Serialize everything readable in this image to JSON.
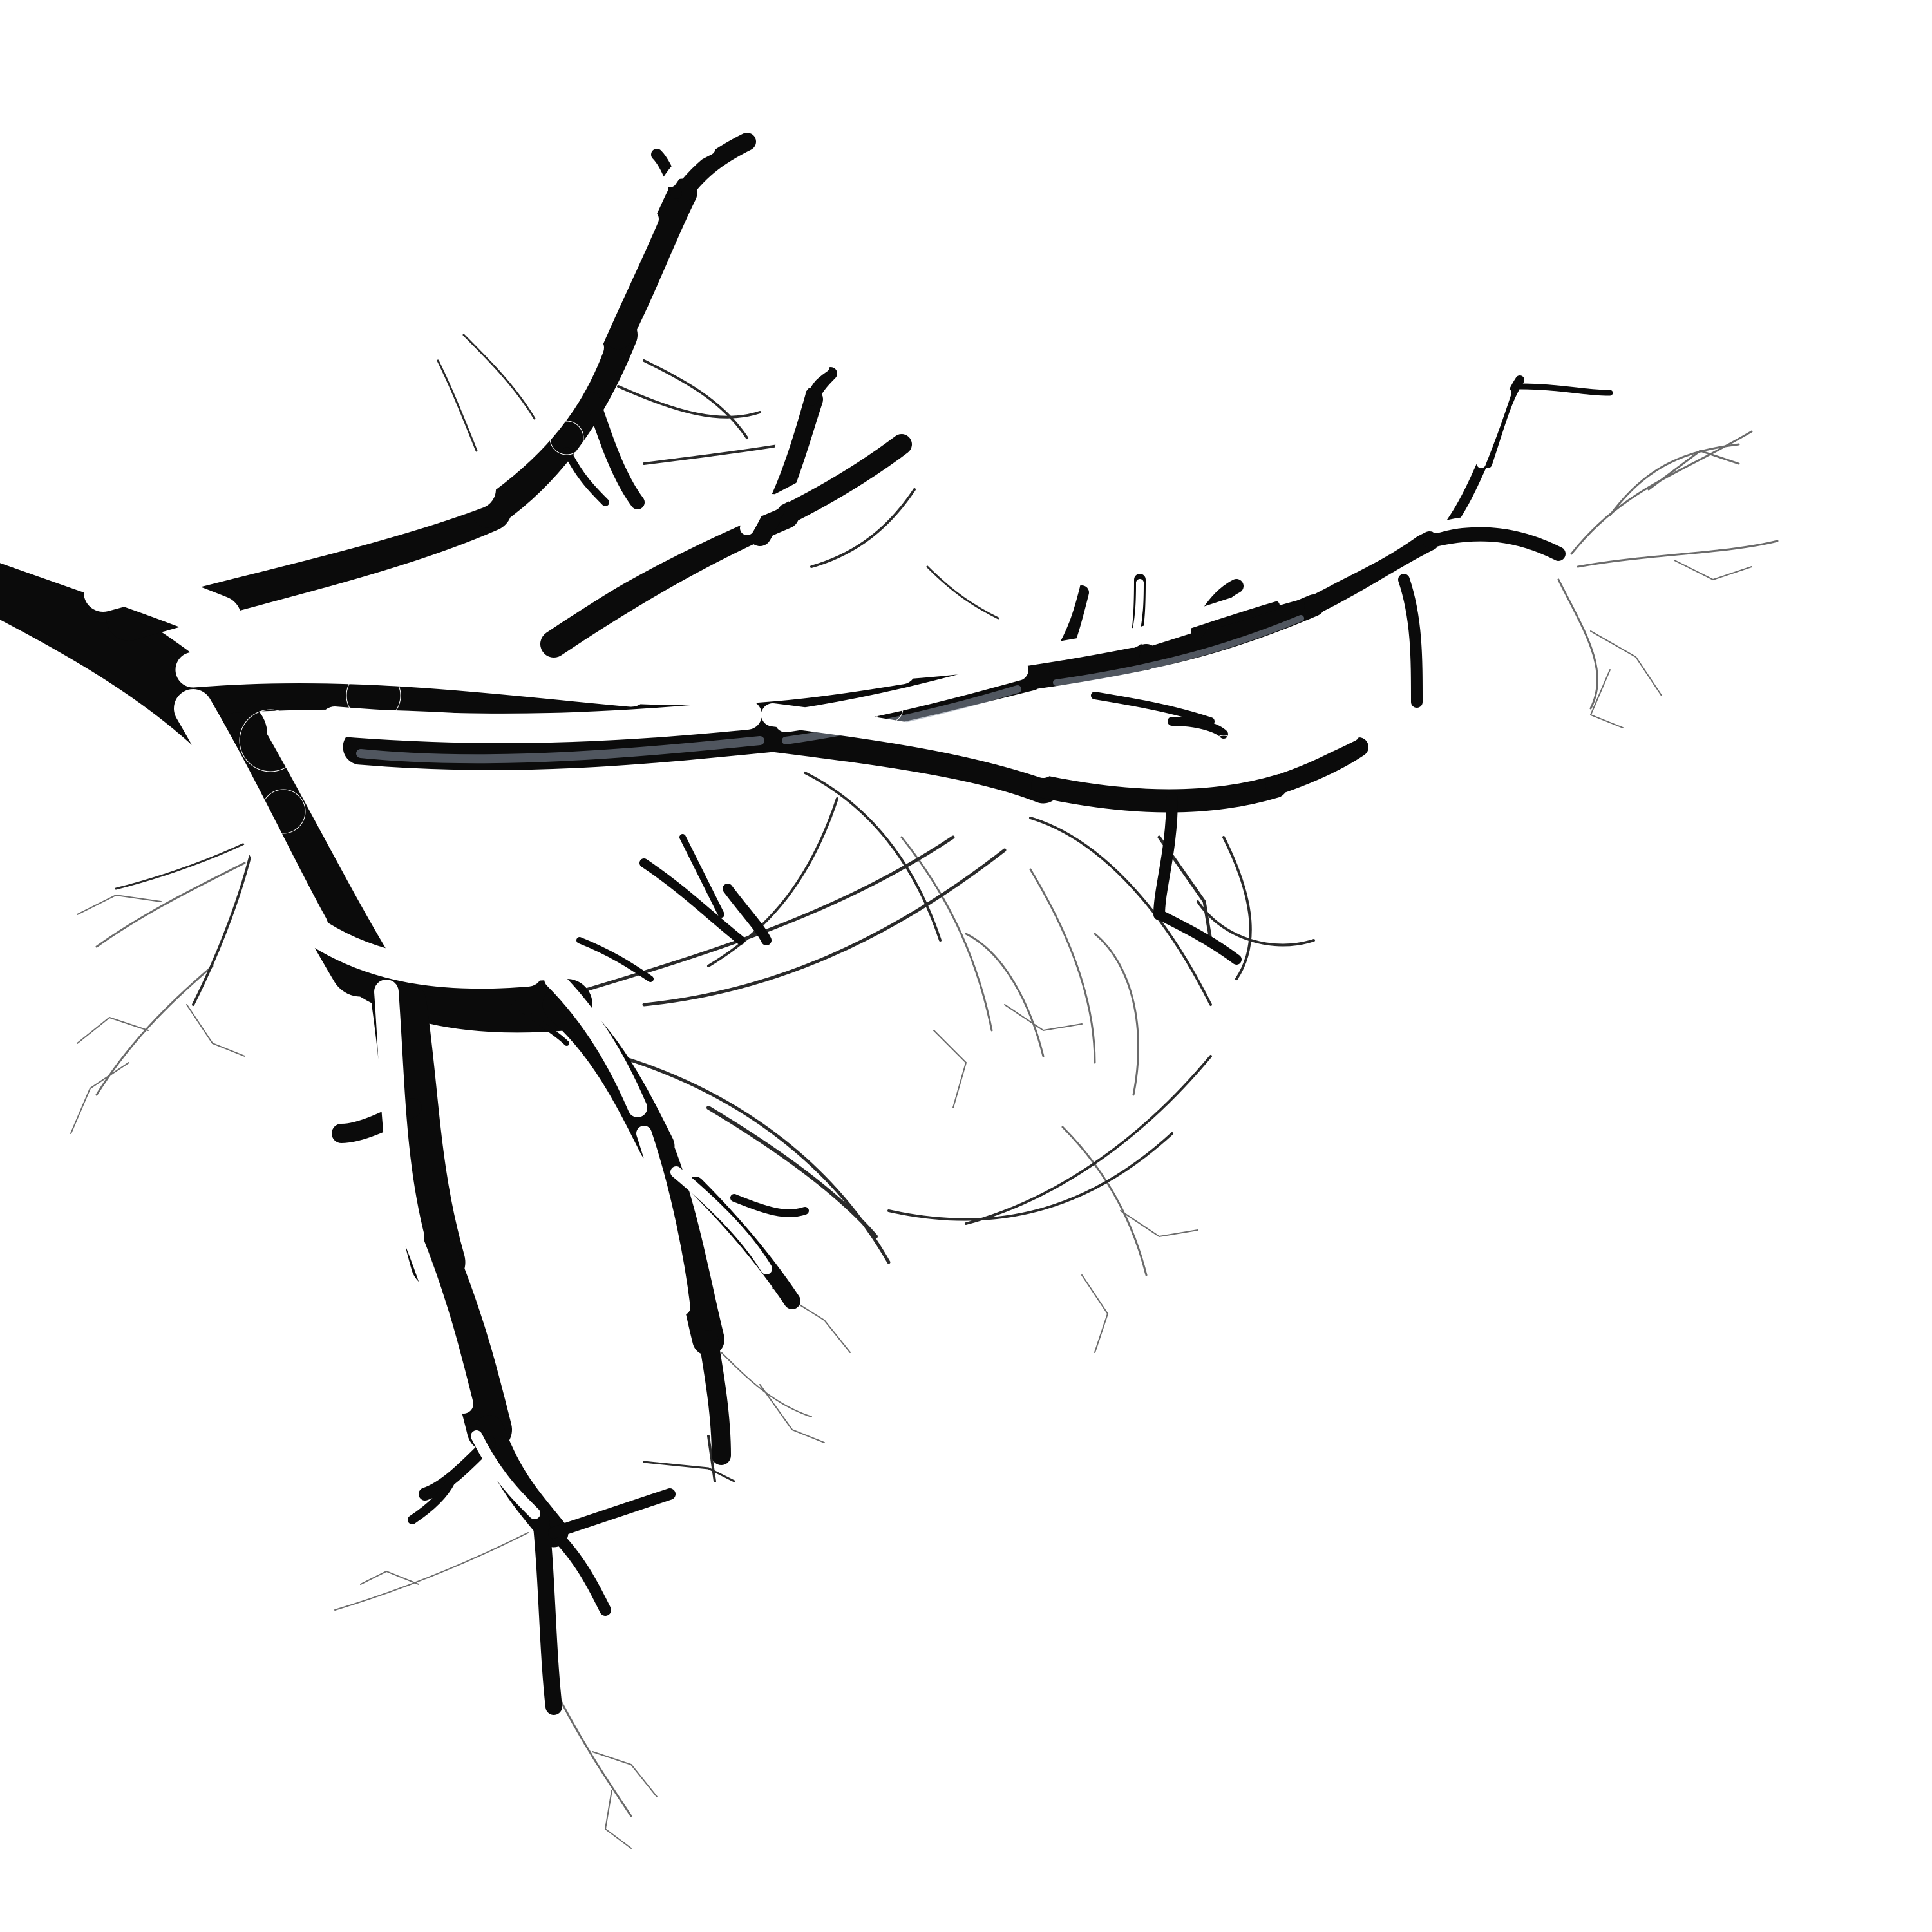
{
  "image": {
    "subject": "snow-covered-tree-branch",
    "background_color": "#ffffff",
    "branch_color": "#0b0b0b",
    "snow_color": "#ffffff",
    "ice_tint_color": "#8a96a6"
  }
}
